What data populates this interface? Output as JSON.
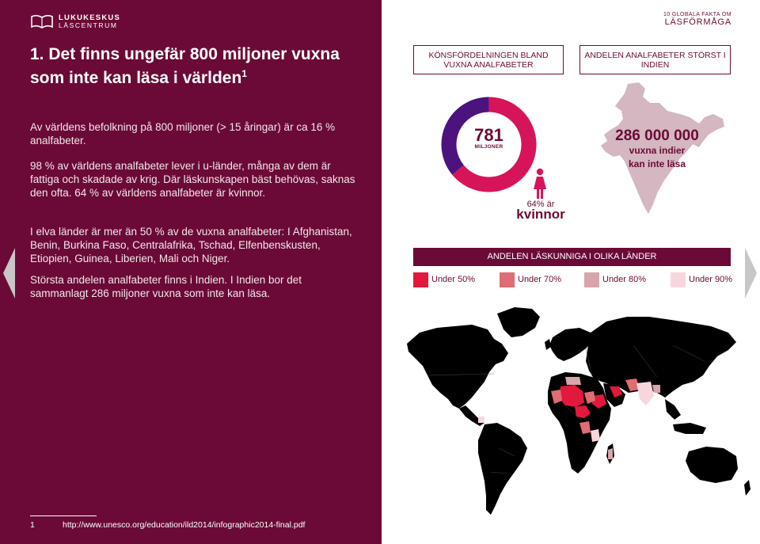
{
  "logo": {
    "name": "LUKUKESKUS",
    "sub": "LÄSCENTRUM"
  },
  "title": {
    "text": "1. Det finns ungefär 800 miljoner vuxna som inte kan läsa i världen",
    "footnote_ref": "1"
  },
  "paragraphs": [
    "Av världens befolkning på 800 miljoner (> 15 åringar) är ca 16 % analfabeter.",
    "98 % av världens analfabeter lever i u-länder, många av dem är fattiga och skadade av krig. Där läskunskapen bäst behövas, saknas den ofta. 64 % av världens analfabeter är kvinnor.",
    "I elva länder är mer än 50 % av de vuxna analfabeter: I Afghanistan, Benin, Burkina Faso, Centralafrika, Tschad, Elfenbenskusten, Etiopien, Guinea, Liberien, Mali och Niger.",
    "Största andelen analfabeter finns i Indien. I Indien bor det sammanlagt 286 miljoner vuxna som inte kan läsa."
  ],
  "footnote": {
    "number": "1",
    "url": "http://www.unesco.org/education/ild2014/infographic2014-final.pdf"
  },
  "series": {
    "small": "10 GLOBALA FAKTA OM",
    "big": "LÄSFÖRMÅGA"
  },
  "header_boxes": [
    "KÖNSFÖRDELNINGEN BLAND VUXNA ANALFABETER",
    "ANDELEN ANALFABETER STÖRST I INDIEN"
  ],
  "gender_chart": {
    "total_number": "781",
    "total_unit": "MILJONER",
    "women_share_percent": 64,
    "women_pct_label": "64% är",
    "women_label": "kvinnor",
    "colors": {
      "women": "#d6145a",
      "men": "#4c137e"
    }
  },
  "india": {
    "number": "286 000 000",
    "line1": "vuxna indier",
    "line2": "kan inte läsa",
    "color": "#d4b7c0"
  },
  "literacy_map": {
    "title": "ANDELEN LÄSKUNNIGA I OLIKA LÄNDER",
    "legend": [
      {
        "label": "Under 50%",
        "color": "#e3183d"
      },
      {
        "label": "Under 70%",
        "color": "#df6d74"
      },
      {
        "label": "Under 80%",
        "color": "#d7a5aa"
      },
      {
        "label": "Under 90%",
        "color": "#f7d7dc"
      }
    ],
    "base_color": "#000000"
  },
  "navigation": {
    "prev": "previous-page",
    "next": "next-page"
  }
}
